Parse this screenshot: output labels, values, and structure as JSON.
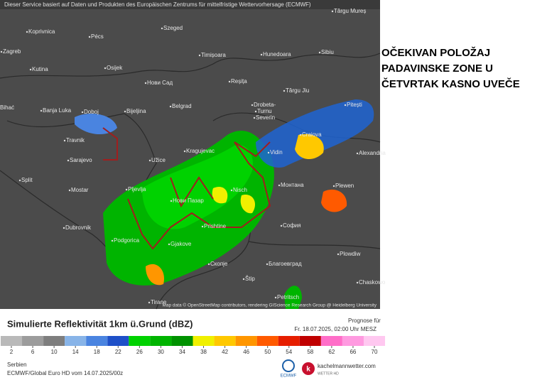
{
  "header": {
    "notice": "Dieser Service basiert auf Daten und Produkten des Europäischen Zentrums für mittelfristige Wettervorhersage (ECMWF)"
  },
  "map": {
    "cities": [
      "Zagreb",
      "Koprivnica",
      "Pécs",
      "Szeged",
      "Timișoara",
      "Hunedoara",
      "Sibiu",
      "Târgu Mureș",
      "Osijek",
      "Kutina",
      "Нови Сад",
      "Reșița",
      "Târgu Jiu",
      "Bihać",
      "Banja Luka",
      "Doboj",
      "Bijeljina",
      "Belgrad",
      "Drobeta-",
      "Turnu",
      "Severin",
      "Pitești",
      "Travnik",
      "Craiova",
      "Alexandria",
      "Kragujevac",
      "Vidin",
      "Sarajevo",
      "Užice",
      "Split",
      "Mostar",
      "Pljevlja",
      "Nisch",
      "Монтана",
      "Plewen",
      "Нови Пазар",
      "Prishtine",
      "София",
      "Dubrovnik",
      "Podgorica",
      "Gjakove",
      "Plowdiw",
      "Скопје",
      "Благоевград",
      "Štip",
      "Tirane",
      "Petritsch",
      "Chaskowo"
    ],
    "credit": "Map data © OpenStreetMap contributors, rendering GIScience Research Group @ Heidelberg University"
  },
  "annotation": [
    "OČEKIVAN POLOŽAJ",
    "PADAVINSKE ZONE U",
    "ČETVRTAK KASNO UVEČE"
  ],
  "legend": {
    "title": "Simulierte Reflektivität 1km ü.Grund (dBZ)",
    "forecast_label": "Prognose für",
    "forecast_time": "Fr. 18.07.2025, 02:00 Uhr MESZ",
    "ticks": [
      2,
      6,
      10,
      14,
      18,
      22,
      26,
      30,
      34,
      38,
      42,
      46,
      50,
      54,
      58,
      62,
      66,
      70
    ],
    "colors": [
      "#b9b9b9",
      "#9c9c9c",
      "#7e7e7e",
      "#88b4e8",
      "#4a84e0",
      "#1e50c8",
      "#00d200",
      "#00b400",
      "#009200",
      "#f0f000",
      "#ffc800",
      "#ff9600",
      "#ff5a00",
      "#e61e00",
      "#c00000",
      "#ff6ec8",
      "#ff9ae0",
      "#ffc8f0"
    ]
  },
  "footer": {
    "region": "Serbien",
    "model": "ECMWF/Global Euro HD vom  14.07.2025/00z",
    "logo_left": "ECMWF",
    "logo_right": "kachelmannwetter.com",
    "logo_right_sub": "WETTER HD"
  }
}
